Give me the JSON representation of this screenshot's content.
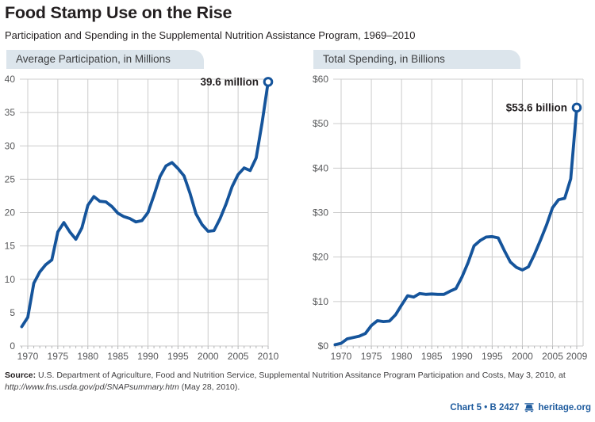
{
  "page": {
    "title": "Food Stamp Use on the Rise",
    "subtitle": "Participation and Spending in the Supplemental Nutrition Assistance Program, 1969–2010",
    "source_label": "Source:",
    "source_text": " U.S. Department of Agriculture, Food and Nutrition Service, Supplemental Nutrition Assitance Program Participation and Costs, May 3, 2010, at ",
    "source_url": "http://www.fns.usda.gov/pd/SNAPsummary.htm",
    "source_suffix": " (May 28, 2010).",
    "footer_ref": "Chart 5 • B 2427",
    "footer_site": "heritage.org"
  },
  "colors": {
    "line_blue": "#15549b",
    "header_bg": "#dce5ec",
    "grid": "#cccccc",
    "tick": "#b5b6b8",
    "axis_text": "#57585a",
    "footer_blue": "#1e5b9e"
  },
  "chart_data": [
    {
      "type": "line",
      "title": "Average Participation, in Millions",
      "annotation": "39.6 million",
      "ylim": [
        0,
        40
      ],
      "grid": true,
      "legend": "none",
      "ytick_values": [
        0,
        5,
        10,
        15,
        20,
        25,
        30,
        35,
        40
      ],
      "ytick_labels": [
        "0",
        "5",
        "10",
        "15",
        "20",
        "25",
        "30",
        "35",
        "40"
      ],
      "xtick_values": [
        1970,
        1975,
        1980,
        1985,
        1990,
        1995,
        2000,
        2005,
        2010
      ],
      "xtick_labels": [
        "1970",
        "1975",
        "1980",
        "1985",
        "1990",
        "1995",
        "2000",
        "2005",
        "2010"
      ],
      "x": [
        1969,
        1970,
        1971,
        1972,
        1973,
        1974,
        1975,
        1976,
        1977,
        1978,
        1979,
        1980,
        1981,
        1982,
        1983,
        1984,
        1985,
        1986,
        1987,
        1988,
        1989,
        1990,
        1991,
        1992,
        1993,
        1994,
        1995,
        1996,
        1997,
        1998,
        1999,
        2000,
        2001,
        2002,
        2003,
        2004,
        2005,
        2006,
        2007,
        2008,
        2009,
        2010
      ],
      "values": [
        2.9,
        4.3,
        9.4,
        11.1,
        12.2,
        12.9,
        17.1,
        18.5,
        17.1,
        16.0,
        17.7,
        21.1,
        22.4,
        21.7,
        21.6,
        20.9,
        19.9,
        19.4,
        19.1,
        18.6,
        18.8,
        20.0,
        22.6,
        25.4,
        27.0,
        27.5,
        26.6,
        25.5,
        22.9,
        19.8,
        18.2,
        17.2,
        17.3,
        19.1,
        21.3,
        23.9,
        25.7,
        26.7,
        26.3,
        28.2,
        33.5,
        39.6
      ],
      "line_color": "#15549b"
    },
    {
      "type": "line",
      "title": "Total Spending, in Billions",
      "annotation": "$53.6 billion",
      "ylim": [
        0,
        60
      ],
      "grid": true,
      "legend": "none",
      "ytick_values": [
        0,
        10,
        20,
        30,
        40,
        50,
        60
      ],
      "ytick_labels": [
        "$0",
        "$10",
        "$20",
        "$30",
        "$40",
        "$50",
        "$60"
      ],
      "xtick_values": [
        1970,
        1975,
        1980,
        1985,
        1990,
        1995,
        2000,
        2005,
        2009
      ],
      "xtick_labels": [
        "1970",
        "1975",
        "1980",
        "1985",
        "1990",
        "1995",
        "2000",
        "2005",
        "2009"
      ],
      "x": [
        1969,
        1970,
        1971,
        1972,
        1973,
        1974,
        1975,
        1976,
        1977,
        1978,
        1979,
        1980,
        1981,
        1982,
        1983,
        1984,
        1985,
        1986,
        1987,
        1988,
        1989,
        1990,
        1991,
        1992,
        1993,
        1994,
        1995,
        1996,
        1997,
        1998,
        1999,
        2000,
        2001,
        2002,
        2003,
        2004,
        2005,
        2006,
        2007,
        2008,
        2009
      ],
      "values": [
        0.3,
        0.6,
        1.6,
        1.9,
        2.2,
        2.8,
        4.6,
        5.7,
        5.5,
        5.6,
        7.0,
        9.2,
        11.3,
        11.0,
        11.8,
        11.6,
        11.7,
        11.6,
        11.6,
        12.3,
        12.9,
        15.5,
        18.7,
        22.5,
        23.7,
        24.5,
        24.6,
        24.3,
        21.5,
        18.9,
        17.7,
        17.1,
        17.8,
        20.6,
        23.8,
        27.2,
        31.1,
        32.9,
        33.2,
        37.6,
        53.6
      ],
      "line_color": "#15549b"
    }
  ]
}
